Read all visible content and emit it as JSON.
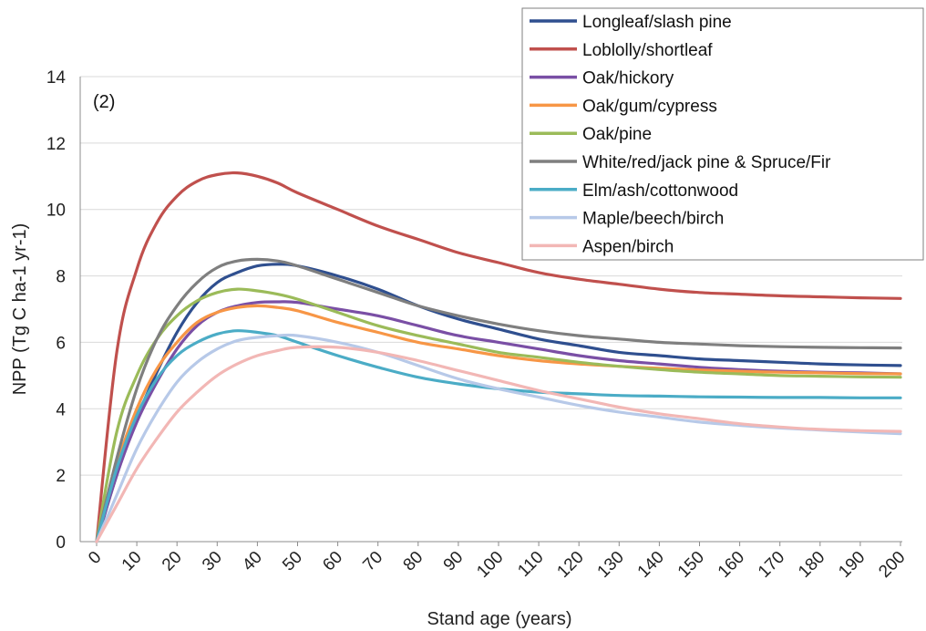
{
  "chart_data": {
    "type": "line",
    "panel_label": "(2)",
    "xlabel": "Stand age (years)",
    "ylabel": "NPP (Tg C ha-1 yr-1)",
    "xlim": [
      0,
      200
    ],
    "ylim": [
      0,
      14
    ],
    "x_ticks": [
      0,
      10,
      20,
      30,
      40,
      50,
      60,
      70,
      80,
      90,
      100,
      110,
      120,
      130,
      140,
      150,
      160,
      170,
      180,
      190,
      200
    ],
    "y_ticks": [
      0,
      2,
      4,
      6,
      8,
      10,
      12,
      14
    ],
    "grid": "horizontal",
    "legend_position": "top-right",
    "x": [
      0,
      5,
      10,
      15,
      20,
      25,
      30,
      35,
      40,
      45,
      50,
      60,
      70,
      80,
      90,
      100,
      110,
      120,
      130,
      140,
      150,
      160,
      170,
      180,
      190,
      200
    ],
    "series": [
      {
        "name": "Longleaf/slash pine",
        "color": "#2f4f8f",
        "values": [
          0,
          2.0,
          3.7,
          5.1,
          6.3,
          7.2,
          7.8,
          8.1,
          8.3,
          8.35,
          8.3,
          8.0,
          7.6,
          7.1,
          6.7,
          6.4,
          6.1,
          5.9,
          5.7,
          5.6,
          5.5,
          5.45,
          5.4,
          5.35,
          5.32,
          5.3
        ]
      },
      {
        "name": "Loblolly/shortleaf",
        "color": "#c0504d",
        "values": [
          0,
          5.7,
          8.2,
          9.6,
          10.4,
          10.85,
          11.05,
          11.1,
          11.0,
          10.8,
          10.5,
          10.0,
          9.5,
          9.1,
          8.7,
          8.4,
          8.1,
          7.9,
          7.75,
          7.6,
          7.5,
          7.45,
          7.4,
          7.37,
          7.34,
          7.32
        ]
      },
      {
        "name": "Oak/hickory",
        "color": "#7a4fa5",
        "values": [
          0,
          2.0,
          3.6,
          4.8,
          5.8,
          6.5,
          6.9,
          7.1,
          7.2,
          7.22,
          7.2,
          7.0,
          6.8,
          6.5,
          6.2,
          6.0,
          5.8,
          5.6,
          5.45,
          5.35,
          5.25,
          5.18,
          5.13,
          5.1,
          5.08,
          5.05
        ]
      },
      {
        "name": "Oak/gum/cypress",
        "color": "#f79646",
        "values": [
          0,
          2.3,
          4.0,
          5.2,
          6.0,
          6.6,
          6.9,
          7.05,
          7.1,
          7.05,
          6.95,
          6.6,
          6.3,
          6.0,
          5.8,
          5.6,
          5.45,
          5.35,
          5.28,
          5.22,
          5.17,
          5.13,
          5.1,
          5.08,
          5.06,
          5.05
        ]
      },
      {
        "name": "Oak/pine",
        "color": "#9bbb59",
        "values": [
          0,
          3.3,
          5.0,
          6.1,
          6.8,
          7.25,
          7.5,
          7.6,
          7.55,
          7.45,
          7.3,
          6.9,
          6.5,
          6.2,
          5.95,
          5.7,
          5.55,
          5.4,
          5.28,
          5.18,
          5.1,
          5.05,
          5.0,
          4.98,
          4.96,
          4.95
        ]
      },
      {
        "name": "White/red/jack pine & Spruce/Fir",
        "color": "#7f7f7f",
        "values": [
          0,
          2.5,
          4.6,
          6.1,
          7.1,
          7.8,
          8.25,
          8.45,
          8.5,
          8.45,
          8.3,
          7.9,
          7.5,
          7.1,
          6.8,
          6.55,
          6.35,
          6.2,
          6.1,
          6.0,
          5.95,
          5.9,
          5.87,
          5.85,
          5.84,
          5.83
        ]
      },
      {
        "name": "Elm/ash/cottonwood",
        "color": "#4bacc6",
        "values": [
          0,
          2.2,
          3.8,
          4.9,
          5.6,
          6.0,
          6.25,
          6.35,
          6.3,
          6.2,
          6.0,
          5.6,
          5.25,
          4.95,
          4.75,
          4.6,
          4.5,
          4.45,
          4.4,
          4.38,
          4.36,
          4.35,
          4.34,
          4.34,
          4.33,
          4.33
        ]
      },
      {
        "name": "Maple/beech/birch",
        "color": "#b7c9e8",
        "values": [
          0,
          1.4,
          2.8,
          3.9,
          4.8,
          5.4,
          5.8,
          6.05,
          6.15,
          6.2,
          6.2,
          6.0,
          5.7,
          5.3,
          4.9,
          4.6,
          4.35,
          4.1,
          3.9,
          3.75,
          3.6,
          3.5,
          3.42,
          3.36,
          3.3,
          3.25
        ]
      },
      {
        "name": "Aspen/birch",
        "color": "#f2b7b5",
        "values": [
          0,
          1.1,
          2.2,
          3.1,
          3.9,
          4.5,
          5.0,
          5.35,
          5.6,
          5.75,
          5.85,
          5.85,
          5.7,
          5.45,
          5.15,
          4.85,
          4.55,
          4.3,
          4.05,
          3.85,
          3.7,
          3.55,
          3.45,
          3.38,
          3.34,
          3.32
        ]
      }
    ]
  }
}
